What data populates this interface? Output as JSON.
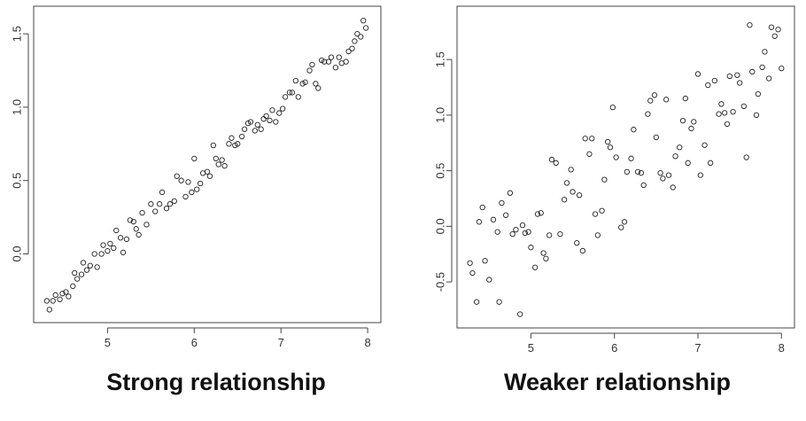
{
  "chart_data": [
    {
      "type": "scatter",
      "title": "",
      "xlabel": "",
      "ylabel": "",
      "caption": "Strong relationship",
      "xlim": [
        4.25,
        8.05
      ],
      "ylim": [
        -0.42,
        1.64
      ],
      "x_ticks": [
        5,
        6,
        7,
        8
      ],
      "y_ticks": [
        0.0,
        0.5,
        1.0,
        1.5
      ],
      "x_tick_labels": [
        "5",
        "6",
        "7",
        "8"
      ],
      "y_tick_labels": [
        "0.0",
        "0.5",
        "1.0",
        "1.5"
      ],
      "grid": false,
      "legend": "none",
      "marker": "open-circle",
      "series": [
        {
          "points": [
            [
              4.3,
              -0.32
            ],
            [
              4.33,
              -0.38
            ],
            [
              4.37,
              -0.32
            ],
            [
              4.4,
              -0.28
            ],
            [
              4.45,
              -0.31
            ],
            [
              4.48,
              -0.27
            ],
            [
              4.52,
              -0.26
            ],
            [
              4.55,
              -0.29
            ],
            [
              4.6,
              -0.22
            ],
            [
              4.62,
              -0.13
            ],
            [
              4.65,
              -0.17
            ],
            [
              4.7,
              -0.14
            ],
            [
              4.72,
              -0.06
            ],
            [
              4.76,
              -0.11
            ],
            [
              4.8,
              -0.08
            ],
            [
              4.85,
              0.0
            ],
            [
              4.88,
              -0.09
            ],
            [
              4.93,
              0.0
            ],
            [
              4.95,
              0.06
            ],
            [
              5.0,
              0.02
            ],
            [
              5.03,
              0.07
            ],
            [
              5.07,
              0.04
            ],
            [
              5.1,
              0.16
            ],
            [
              5.15,
              0.11
            ],
            [
              5.18,
              0.01
            ],
            [
              5.22,
              0.1
            ],
            [
              5.26,
              0.23
            ],
            [
              5.3,
              0.22
            ],
            [
              5.33,
              0.17
            ],
            [
              5.36,
              0.13
            ],
            [
              5.4,
              0.28
            ],
            [
              5.45,
              0.2
            ],
            [
              5.5,
              0.34
            ],
            [
              5.55,
              0.29
            ],
            [
              5.6,
              0.34
            ],
            [
              5.63,
              0.42
            ],
            [
              5.68,
              0.31
            ],
            [
              5.72,
              0.34
            ],
            [
              5.77,
              0.36
            ],
            [
              5.8,
              0.53
            ],
            [
              5.85,
              0.5
            ],
            [
              5.9,
              0.39
            ],
            [
              5.93,
              0.49
            ],
            [
              5.97,
              0.42
            ],
            [
              6.0,
              0.65
            ],
            [
              6.03,
              0.44
            ],
            [
              6.07,
              0.48
            ],
            [
              6.1,
              0.55
            ],
            [
              6.15,
              0.56
            ],
            [
              6.18,
              0.53
            ],
            [
              6.22,
              0.74
            ],
            [
              6.25,
              0.65
            ],
            [
              6.28,
              0.61
            ],
            [
              6.32,
              0.64
            ],
            [
              6.35,
              0.6
            ],
            [
              6.4,
              0.75
            ],
            [
              6.43,
              0.79
            ],
            [
              6.47,
              0.74
            ],
            [
              6.5,
              0.75
            ],
            [
              6.55,
              0.8
            ],
            [
              6.58,
              0.85
            ],
            [
              6.62,
              0.89
            ],
            [
              6.65,
              0.9
            ],
            [
              6.7,
              0.84
            ],
            [
              6.73,
              0.88
            ],
            [
              6.77,
              0.85
            ],
            [
              6.8,
              0.92
            ],
            [
              6.83,
              0.94
            ],
            [
              6.87,
              0.91
            ],
            [
              6.9,
              0.98
            ],
            [
              6.94,
              0.9
            ],
            [
              6.98,
              0.96
            ],
            [
              7.02,
              0.99
            ],
            [
              7.05,
              1.07
            ],
            [
              7.1,
              1.1
            ],
            [
              7.13,
              1.1
            ],
            [
              7.17,
              1.18
            ],
            [
              7.2,
              1.07
            ],
            [
              7.25,
              1.16
            ],
            [
              7.28,
              1.17
            ],
            [
              7.33,
              1.25
            ],
            [
              7.36,
              1.29
            ],
            [
              7.4,
              1.16
            ],
            [
              7.43,
              1.13
            ],
            [
              7.47,
              1.32
            ],
            [
              7.5,
              1.31
            ],
            [
              7.55,
              1.31
            ],
            [
              7.58,
              1.34
            ],
            [
              7.63,
              1.27
            ],
            [
              7.67,
              1.34
            ],
            [
              7.7,
              1.3
            ],
            [
              7.75,
              1.31
            ],
            [
              7.78,
              1.38
            ],
            [
              7.82,
              1.4
            ],
            [
              7.85,
              1.45
            ],
            [
              7.88,
              1.5
            ],
            [
              7.92,
              1.48
            ],
            [
              7.95,
              1.59
            ],
            [
              7.98,
              1.54
            ]
          ]
        }
      ]
    },
    {
      "type": "scatter",
      "title": "",
      "xlabel": "",
      "ylabel": "",
      "caption": "Weaker relationship",
      "xlim": [
        4.2,
        8.05
      ],
      "ylim": [
        -0.85,
        1.82
      ],
      "x_ticks": [
        5,
        6,
        7,
        8
      ],
      "y_ticks": [
        -0.5,
        0.0,
        0.5,
        1.0,
        1.5
      ],
      "x_tick_labels": [
        "5",
        "6",
        "7",
        "8"
      ],
      "y_tick_labels": [
        "-0.5",
        "0.0",
        "0.5",
        "1.0",
        "1.5"
      ],
      "grid": false,
      "legend": "none",
      "marker": "open-circle",
      "series": [
        {
          "points": [
            [
              4.27,
              -0.33
            ],
            [
              4.3,
              -0.42
            ],
            [
              4.35,
              -0.68
            ],
            [
              4.38,
              0.04
            ],
            [
              4.42,
              0.17
            ],
            [
              4.45,
              -0.31
            ],
            [
              4.5,
              -0.48
            ],
            [
              4.55,
              0.06
            ],
            [
              4.6,
              -0.05
            ],
            [
              4.62,
              -0.68
            ],
            [
              4.65,
              0.21
            ],
            [
              4.7,
              0.1
            ],
            [
              4.75,
              0.3
            ],
            [
              4.78,
              -0.07
            ],
            [
              4.82,
              -0.03
            ],
            [
              4.87,
              -0.79
            ],
            [
              4.9,
              0.01
            ],
            [
              4.93,
              -0.06
            ],
            [
              4.97,
              -0.05
            ],
            [
              5.0,
              -0.19
            ],
            [
              5.05,
              -0.37
            ],
            [
              5.08,
              0.11
            ],
            [
              5.12,
              0.12
            ],
            [
              5.15,
              -0.24
            ],
            [
              5.18,
              -0.29
            ],
            [
              5.22,
              -0.08
            ],
            [
              5.25,
              0.6
            ],
            [
              5.3,
              0.57
            ],
            [
              5.35,
              -0.07
            ],
            [
              5.4,
              0.24
            ],
            [
              5.43,
              0.39
            ],
            [
              5.48,
              0.51
            ],
            [
              5.5,
              0.31
            ],
            [
              5.55,
              -0.15
            ],
            [
              5.58,
              0.28
            ],
            [
              5.62,
              -0.22
            ],
            [
              5.65,
              0.79
            ],
            [
              5.7,
              0.65
            ],
            [
              5.73,
              0.79
            ],
            [
              5.77,
              0.11
            ],
            [
              5.8,
              -0.08
            ],
            [
              5.85,
              0.14
            ],
            [
              5.88,
              0.42
            ],
            [
              5.92,
              0.76
            ],
            [
              5.95,
              0.71
            ],
            [
              5.98,
              1.07
            ],
            [
              6.02,
              0.62
            ],
            [
              6.08,
              -0.01
            ],
            [
              6.12,
              0.04
            ],
            [
              6.15,
              0.49
            ],
            [
              6.2,
              0.61
            ],
            [
              6.23,
              0.87
            ],
            [
              6.28,
              0.49
            ],
            [
              6.32,
              0.48
            ],
            [
              6.35,
              0.37
            ],
            [
              6.4,
              1.01
            ],
            [
              6.43,
              1.13
            ],
            [
              6.48,
              1.18
            ],
            [
              6.5,
              0.8
            ],
            [
              6.55,
              0.48
            ],
            [
              6.58,
              0.43
            ],
            [
              6.62,
              1.14
            ],
            [
              6.65,
              0.46
            ],
            [
              6.7,
              0.35
            ],
            [
              6.73,
              0.63
            ],
            [
              6.78,
              0.71
            ],
            [
              6.82,
              0.95
            ],
            [
              6.85,
              1.15
            ],
            [
              6.88,
              0.57
            ],
            [
              6.92,
              0.88
            ],
            [
              6.95,
              0.94
            ],
            [
              7.0,
              1.37
            ],
            [
              7.03,
              0.46
            ],
            [
              7.08,
              0.73
            ],
            [
              7.12,
              1.27
            ],
            [
              7.15,
              0.57
            ],
            [
              7.2,
              1.31
            ],
            [
              7.25,
              1.01
            ],
            [
              7.28,
              1.1
            ],
            [
              7.32,
              1.02
            ],
            [
              7.35,
              0.92
            ],
            [
              7.38,
              1.35
            ],
            [
              7.42,
              1.03
            ],
            [
              7.47,
              1.36
            ],
            [
              7.5,
              1.29
            ],
            [
              7.55,
              1.08
            ],
            [
              7.58,
              0.62
            ],
            [
              7.62,
              1.81
            ],
            [
              7.65,
              1.39
            ],
            [
              7.7,
              1.0
            ],
            [
              7.72,
              1.19
            ],
            [
              7.77,
              1.43
            ],
            [
              7.8,
              1.57
            ],
            [
              7.85,
              1.33
            ],
            [
              7.88,
              1.79
            ],
            [
              7.92,
              1.71
            ],
            [
              7.96,
              1.77
            ],
            [
              8.0,
              1.42
            ]
          ]
        }
      ]
    }
  ]
}
